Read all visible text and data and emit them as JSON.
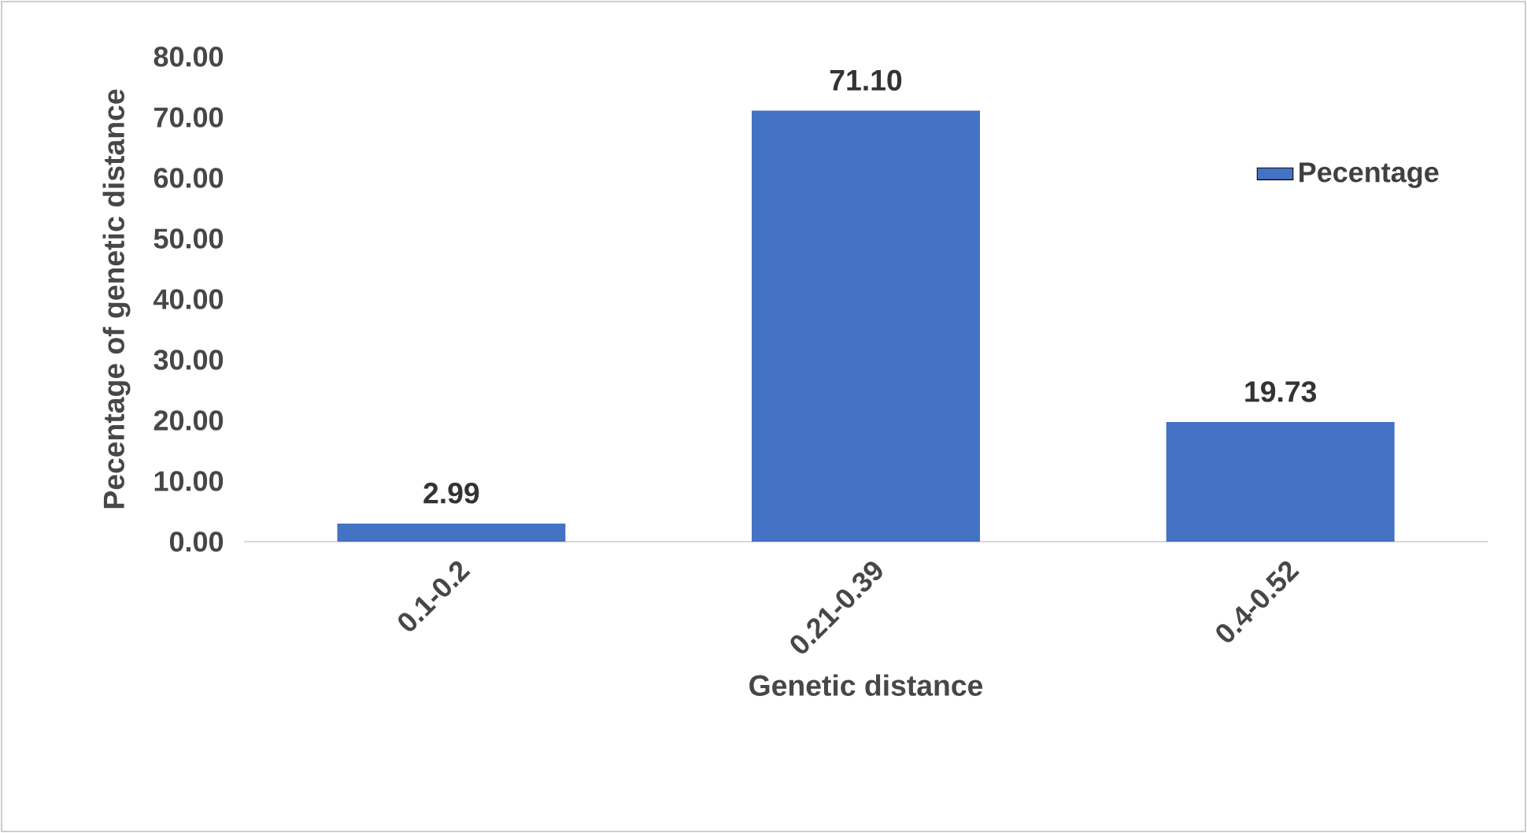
{
  "chart_data": {
    "type": "bar",
    "xlabel": "Genetic distance",
    "ylabel": "Pecentage of genetic distance",
    "categories": [
      "0.1-0.2",
      "0.21-0.39",
      "0.4-0.52"
    ],
    "series": [
      {
        "name": "Pecentage",
        "color": "#4472c4",
        "values": [
          2.99,
          71.1,
          19.73
        ],
        "value_labels": [
          "2.99",
          "71.10",
          "19.73"
        ]
      }
    ],
    "ylim": [
      0,
      80
    ],
    "yticks": [
      {
        "value": 0,
        "label": "0.00"
      },
      {
        "value": 10,
        "label": "10.00"
      },
      {
        "value": 20,
        "label": "20.00"
      },
      {
        "value": 30,
        "label": "30.00"
      },
      {
        "value": 40,
        "label": "40.00"
      },
      {
        "value": 50,
        "label": "50.00"
      },
      {
        "value": 60,
        "label": "60.00"
      },
      {
        "value": 70,
        "label": "70.00"
      },
      {
        "value": 80,
        "label": "80.00"
      }
    ],
    "grid": false,
    "legend": "top right"
  }
}
